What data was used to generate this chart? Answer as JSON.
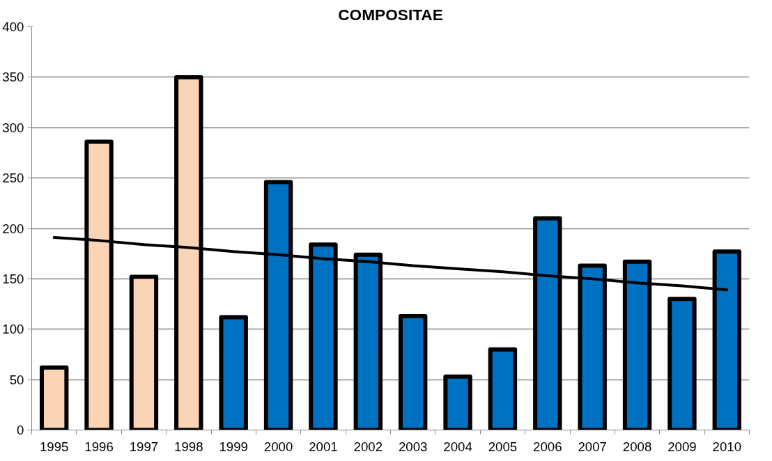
{
  "chart_data": {
    "type": "bar",
    "title": "COMPOSITAE",
    "categories": [
      "1995",
      "1996",
      "1997",
      "1998",
      "1999",
      "2000",
      "2001",
      "2002",
      "2003",
      "2004",
      "2005",
      "2006",
      "2007",
      "2008",
      "2009",
      "2010"
    ],
    "series": [
      {
        "values": [
          62,
          286,
          152,
          350,
          112,
          246,
          184,
          174,
          113,
          53,
          80,
          210,
          163,
          167,
          130,
          177
        ],
        "colors": [
          "#fad4b4",
          "#fad4b4",
          "#fad4b4",
          "#fad4b4",
          "#0070c0",
          "#0070c0",
          "#0070c0",
          "#0070c0",
          "#0070c0",
          "#0070c0",
          "#0070c0",
          "#0070c0",
          "#0070c0",
          "#0070c0",
          "#0070c0",
          "#0070c0"
        ]
      },
      {
        "type": "line",
        "values": [
          191,
          188,
          184,
          181,
          177,
          174,
          170,
          167,
          163,
          160,
          157,
          153,
          150,
          146,
          143,
          139
        ],
        "color": "#000000"
      }
    ],
    "ylim": [
      0,
      400
    ],
    "yticks": [
      0,
      50,
      100,
      150,
      200,
      250,
      300,
      350,
      400
    ],
    "grid": "y"
  }
}
